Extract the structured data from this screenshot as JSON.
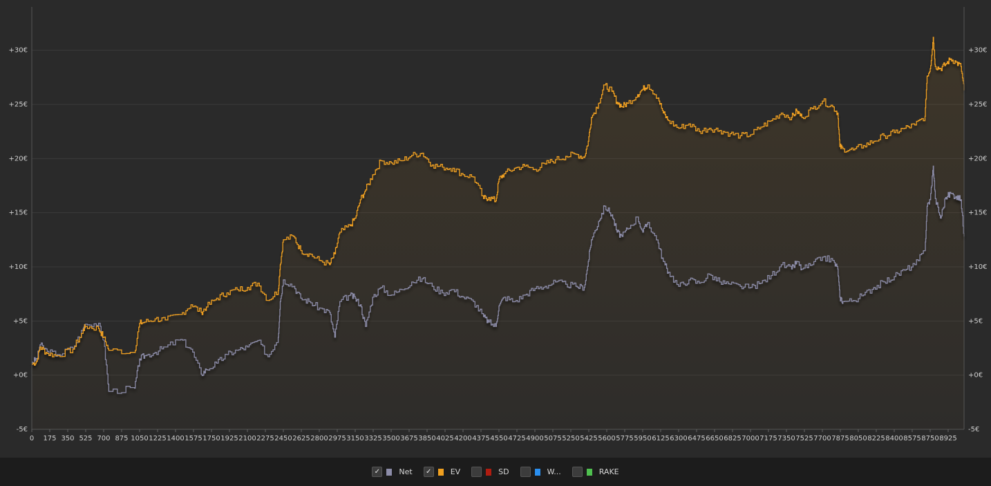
{
  "chart_data": {
    "type": "line",
    "x_ticks": [
      "0",
      "175",
      "350",
      "525",
      "700",
      "875",
      "1050",
      "1225",
      "1400",
      "1575",
      "1750",
      "1925",
      "2100",
      "2275",
      "2450",
      "2625",
      "2800",
      "2975",
      "3150",
      "3325",
      "3500",
      "3675",
      "3850",
      "4025",
      "4200",
      "4375",
      "4550",
      "4725",
      "4900",
      "5075",
      "5250",
      "5425",
      "5600",
      "5775",
      "5950",
      "6125",
      "6300",
      "6475",
      "6650",
      "6825",
      "7000",
      "7175",
      "7350",
      "7525",
      "7700",
      "7875",
      "8050",
      "8225",
      "8400",
      "8575",
      "8750",
      "8925"
    ],
    "y_ticks": [
      "-5€",
      "+0€",
      "+5€",
      "+10€",
      "+15€",
      "+20€",
      "+25€",
      "+30€"
    ],
    "ylim": [
      -5,
      34
    ],
    "xlim": [
      0,
      9080
    ],
    "grid": true,
    "series": [
      {
        "name": "Net",
        "color": "#8c8ca8",
        "x": [
          0,
          50,
          80,
          150,
          250,
          400,
          500,
          520,
          650,
          700,
          750,
          1000,
          1050,
          1100,
          1200,
          1300,
          1450,
          1550,
          1650,
          1700,
          1800,
          1900,
          2000,
          2100,
          2200,
          2300,
          2400,
          2420,
          2450,
          2550,
          2620,
          2700,
          2800,
          2900,
          2950,
          3000,
          3100,
          3150,
          3200,
          3250,
          3320,
          3400,
          3500,
          3600,
          3700,
          3800,
          3900,
          4000,
          4100,
          4200,
          4300,
          4400,
          4450,
          4520,
          4550,
          4600,
          4700,
          4800,
          4900,
          5000,
          5100,
          5200,
          5300,
          5380,
          5420,
          5450,
          5520,
          5580,
          5650,
          5700,
          5750,
          5800,
          5900,
          5950,
          6000,
          6100,
          6150,
          6200,
          6300,
          6400,
          6500,
          6600,
          6700,
          6800,
          6900,
          7000,
          7100,
          7200,
          7300,
          7400,
          7450,
          7500,
          7600,
          7700,
          7800,
          7850,
          7870,
          7900,
          8000,
          8100,
          8200,
          8300,
          8400,
          8500,
          8600,
          8700,
          8720,
          8750,
          8780,
          8800,
          8850,
          8900,
          8950,
          9000,
          9050,
          9080
        ],
        "y": [
          1.2,
          1.5,
          2.8,
          2.2,
          1.9,
          2.5,
          4.3,
          4.7,
          4.8,
          3.2,
          -1.5,
          -1.2,
          1.5,
          1.8,
          2.1,
          2.6,
          3.3,
          2.4,
          0.1,
          0.5,
          1.1,
          1.9,
          2.3,
          2.6,
          3.2,
          1.7,
          3.5,
          6.8,
          8.8,
          8.2,
          7.1,
          6.8,
          6.2,
          5.8,
          3.5,
          6.8,
          7.4,
          7.1,
          6.5,
          4.5,
          7.2,
          8.1,
          7.4,
          7.9,
          8.6,
          8.9,
          8.2,
          7.6,
          7.9,
          7.2,
          6.8,
          5.4,
          4.9,
          4.5,
          6.4,
          7.2,
          6.8,
          7.4,
          8.0,
          8.2,
          8.6,
          8.4,
          8.2,
          8.1,
          10.5,
          12.5,
          14.2,
          15.6,
          14.8,
          13.2,
          12.8,
          13.5,
          14.6,
          13.2,
          14.1,
          12.2,
          10.5,
          9.5,
          8.2,
          8.8,
          8.5,
          9.3,
          8.6,
          8.4,
          8.2,
          8.1,
          8.5,
          9.2,
          10.2,
          9.8,
          10.5,
          9.8,
          10.2,
          10.9,
          10.6,
          9.8,
          7.2,
          6.8,
          6.9,
          7.4,
          8.1,
          8.6,
          9.1,
          9.7,
          10.2,
          11.5,
          15.6,
          16.2,
          19.3,
          16.3,
          14.5,
          16.4,
          16.8,
          16.5,
          16.2,
          12.8
        ]
      },
      {
        "name": "EV",
        "color": "#f0a020",
        "x": [
          0,
          50,
          80,
          150,
          250,
          400,
          500,
          520,
          650,
          700,
          750,
          1000,
          1050,
          1100,
          1200,
          1300,
          1450,
          1550,
          1650,
          1700,
          1800,
          1900,
          2000,
          2100,
          2200,
          2300,
          2400,
          2420,
          2450,
          2550,
          2620,
          2700,
          2800,
          2900,
          2950,
          3000,
          3100,
          3150,
          3200,
          3250,
          3320,
          3400,
          3500,
          3600,
          3700,
          3800,
          3900,
          4000,
          4100,
          4200,
          4300,
          4400,
          4450,
          4520,
          4550,
          4600,
          4700,
          4800,
          4900,
          5000,
          5100,
          5200,
          5300,
          5380,
          5420,
          5450,
          5520,
          5580,
          5650,
          5700,
          5750,
          5800,
          5900,
          5950,
          6000,
          6100,
          6150,
          6200,
          6300,
          6400,
          6500,
          6600,
          6700,
          6800,
          6900,
          7000,
          7100,
          7200,
          7300,
          7400,
          7450,
          7500,
          7600,
          7700,
          7800,
          7850,
          7870,
          7900,
          8000,
          8100,
          8200,
          8300,
          8400,
          8500,
          8600,
          8700,
          8720,
          8750,
          8780,
          8800,
          8850,
          8900,
          8950,
          9000,
          9050,
          9080
        ],
        "y": [
          1.0,
          1.3,
          2.6,
          2.0,
          1.8,
          2.4,
          4.1,
          4.5,
          4.3,
          3.5,
          2.3,
          2.1,
          4.8,
          4.9,
          5.2,
          5.1,
          5.6,
          6.5,
          5.8,
          6.3,
          7.1,
          7.6,
          7.9,
          8.1,
          8.5,
          6.9,
          7.8,
          10.2,
          12.5,
          12.8,
          11.5,
          11.2,
          10.6,
          10.2,
          11.2,
          13.2,
          13.8,
          14.5,
          16.2,
          17.1,
          18.5,
          19.8,
          19.6,
          19.8,
          20.3,
          20.5,
          19.4,
          19.2,
          19.1,
          18.5,
          18.3,
          16.3,
          16.4,
          16.1,
          18.1,
          18.6,
          19.1,
          19.3,
          19.0,
          19.5,
          19.9,
          20.2,
          20.4,
          20.1,
          21.6,
          23.8,
          25.1,
          26.8,
          26.2,
          25.2,
          24.8,
          25.1,
          25.9,
          26.4,
          26.8,
          25.6,
          24.2,
          23.5,
          22.8,
          23.2,
          22.5,
          22.8,
          22.6,
          22.3,
          22.1,
          22.2,
          22.9,
          23.5,
          24.2,
          23.8,
          24.4,
          23.8,
          24.6,
          25.3,
          24.8,
          24.2,
          21.1,
          20.9,
          20.8,
          21.2,
          21.6,
          22.1,
          22.4,
          22.8,
          23.1,
          23.9,
          27.6,
          28.3,
          31.2,
          28.5,
          28.3,
          28.7,
          29.2,
          28.9,
          28.5,
          26.3
        ]
      }
    ]
  },
  "legend": [
    {
      "label": "Net",
      "checked": true,
      "color": "#8c8ca8"
    },
    {
      "label": "EV",
      "checked": true,
      "color": "#f0a020"
    },
    {
      "label": "SD",
      "checked": false,
      "color": "#b01c10"
    },
    {
      "label": "W...",
      "checked": false,
      "color": "#2a8ff0"
    },
    {
      "label": "RAKE",
      "checked": false,
      "color": "#4fc04f"
    }
  ],
  "check_glyph": "✓"
}
